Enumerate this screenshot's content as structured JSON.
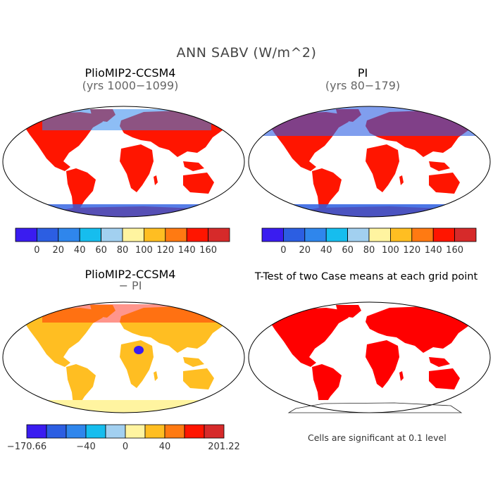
{
  "title": "ANN SABV (W/m^2)",
  "colors": {
    "scale": [
      "#3a1cf0",
      "#2c5ee2",
      "#2f86ec",
      "#16bdee",
      "#a2d0f0",
      "#fff4a0",
      "#ffbe22",
      "#ff7a12",
      "#ff1500",
      "#d62a2a"
    ],
    "land_gray": "#9a9a9a",
    "significant": "#ff0000"
  },
  "chart_data": [
    {
      "type": "heatmap",
      "title": "PlioMIP2-CCSM4",
      "subtitle": "(yrs 1000−1099)",
      "colorbar": {
        "bin_count": 10,
        "labels": [
          "0",
          "20",
          "40",
          "60",
          "80",
          "100",
          "120",
          "140",
          "160"
        ]
      }
    },
    {
      "type": "heatmap",
      "title": "PI",
      "subtitle": "(yrs 80−179)",
      "colorbar": {
        "bin_count": 10,
        "labels": [
          "0",
          "20",
          "40",
          "60",
          "80",
          "100",
          "120",
          "140",
          "160"
        ]
      }
    },
    {
      "type": "heatmap",
      "title": "PlioMIP2-CCSM4",
      "subtitle": "− PI",
      "colorbar": {
        "bin_count": 10,
        "labels": [
          "−170.66",
          "−40",
          "0",
          "40",
          "201.22"
        ]
      }
    },
    {
      "type": "heatmap",
      "title": "T-Test of two Case means at each grid point",
      "note": "Cells are significant at 0.1 level"
    }
  ]
}
